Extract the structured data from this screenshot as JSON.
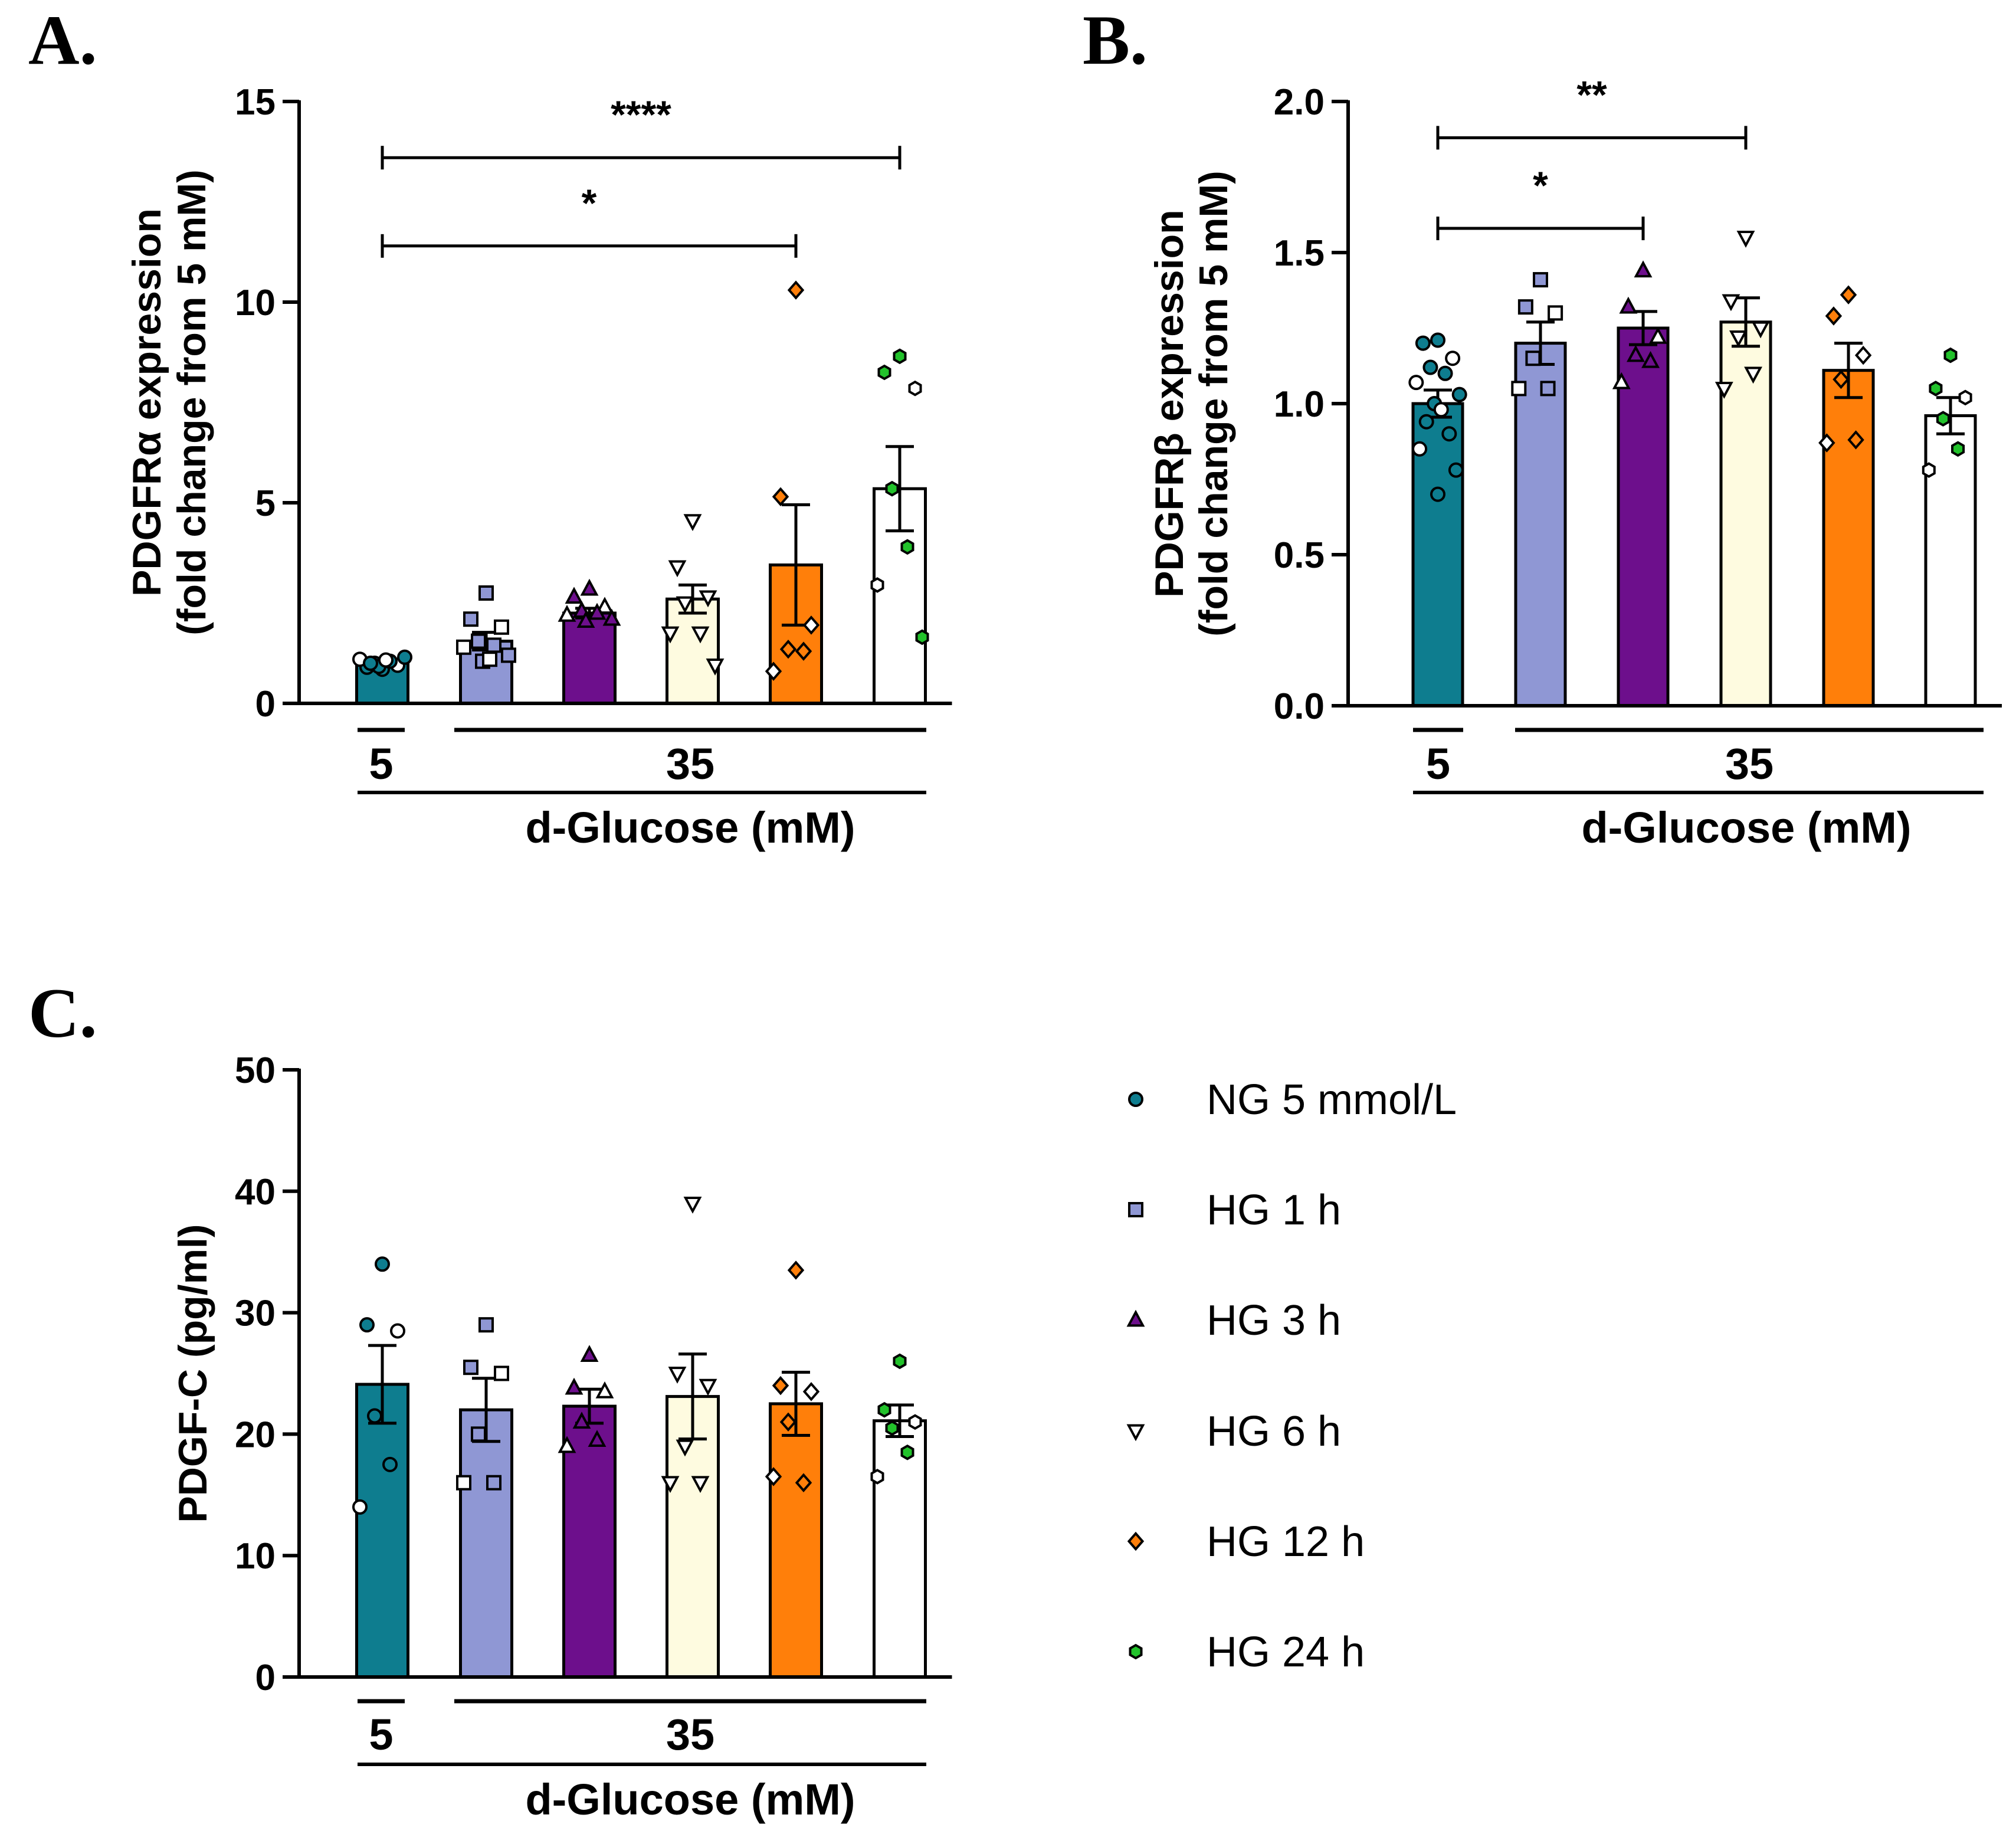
{
  "legend": [
    {
      "label": "NG 5 mmol/L",
      "color": "#0e7d8f",
      "marker": "circle"
    },
    {
      "label": "HG 1 h",
      "color": "#8f97d4",
      "marker": "square"
    },
    {
      "label": "HG 3 h",
      "color": "#6d0f8c",
      "marker": "triangle"
    },
    {
      "label": "HG 6 h",
      "color": "#fefbe0",
      "marker": "triangle-down"
    },
    {
      "label": "HG 12 h",
      "color": "#ff7f0a",
      "marker": "diamond"
    },
    {
      "label": "HG 24 h",
      "color": "#ffffff",
      "marker": "hexagon",
      "marker_color": "#22c22b"
    }
  ],
  "chart_data": [
    {
      "panel": "A.",
      "type": "bar",
      "ylabel_line1": "PDGFRα expression",
      "ylabel_line2": "(fold change from 5 mM)",
      "ylim": [
        0,
        15
      ],
      "yticks": [
        0,
        5,
        10,
        15
      ],
      "ytick_labels": [
        "0",
        "5",
        "10",
        "15"
      ],
      "group_labels": [
        "5",
        "35"
      ],
      "xlabel": "d-Glucose (mM)",
      "categories": [
        "NG 5 mmol/L",
        "HG 1 h",
        "HG 3 h",
        "HG 6 h",
        "HG 12 h",
        "HG 24 h"
      ],
      "values": [
        1.0,
        1.55,
        2.25,
        2.6,
        3.45,
        5.35
      ],
      "sem": [
        0.1,
        0.22,
        0.12,
        0.35,
        1.5,
        1.05
      ],
      "points": [
        [
          0.85,
          0.9,
          0.95,
          1.0,
          1.05,
          1.1,
          1.15,
          0.92,
          1.08,
          1.0
        ],
        [
          2.75,
          2.1,
          1.9,
          1.55,
          1.45,
          1.4,
          1.2,
          1.05,
          1.1
        ],
        [
          2.85,
          2.65,
          2.4,
          2.3,
          2.25,
          2.2,
          2.1,
          2.05
        ],
        [
          4.55,
          3.4,
          2.65,
          2.5,
          1.75,
          1.75,
          0.95
        ],
        [
          10.3,
          5.15,
          1.95,
          1.35,
          1.3,
          0.8
        ],
        [
          8.65,
          8.25,
          7.85,
          5.35,
          3.9,
          2.95,
          1.65
        ]
      ],
      "significance": [
        {
          "from": 0,
          "to": 5,
          "label": "****",
          "y": 13.6
        },
        {
          "from": 0,
          "to": 4,
          "label": "*",
          "y": 11.4
        }
      ]
    },
    {
      "panel": "B.",
      "type": "bar",
      "ylabel_line1": "PDGFRβ expression",
      "ylabel_line2": "(fold change from 5 mM)",
      "ylim": [
        0,
        2.0
      ],
      "yticks": [
        0,
        0.5,
        1.0,
        1.5,
        2.0
      ],
      "ytick_labels": [
        "0.0",
        "0.5",
        "1.0",
        "1.5",
        "2.0"
      ],
      "group_labels": [
        "5",
        "35"
      ],
      "xlabel": "d-Glucose (mM)",
      "categories": [
        "NG 5 mmol/L",
        "HG 1 h",
        "HG 3 h",
        "HG 6 h",
        "HG 12 h",
        "HG 24 h"
      ],
      "values": [
        1.0,
        1.2,
        1.25,
        1.27,
        1.11,
        0.96
      ],
      "sem": [
        0.045,
        0.07,
        0.055,
        0.08,
        0.09,
        0.06
      ],
      "points": [
        [
          1.21,
          1.2,
          1.15,
          1.12,
          1.1,
          1.07,
          1.03,
          1.0,
          0.98,
          0.94,
          0.9,
          0.85,
          0.78,
          0.7
        ],
        [
          1.41,
          1.32,
          1.3,
          1.15,
          1.05,
          1.05
        ],
        [
          1.44,
          1.32,
          1.22,
          1.16,
          1.14,
          1.07
        ],
        [
          1.55,
          1.34,
          1.25,
          1.22,
          1.1,
          1.05
        ],
        [
          1.36,
          1.29,
          1.16,
          1.08,
          0.88,
          0.87
        ],
        [
          1.16,
          1.05,
          1.02,
          0.95,
          0.85,
          0.78
        ]
      ],
      "significance": [
        {
          "from": 0,
          "to": 3,
          "label": "**",
          "y": 1.88
        },
        {
          "from": 0,
          "to": 2,
          "label": "*",
          "y": 1.58
        }
      ]
    },
    {
      "panel": "C.",
      "type": "bar",
      "ylabel_line1": "PDGF-C (pg/ml)",
      "ylabel_line2": "",
      "ylim": [
        0,
        50
      ],
      "yticks": [
        0,
        10,
        20,
        30,
        40,
        50
      ],
      "ytick_labels": [
        "0",
        "10",
        "20",
        "30",
        "40",
        "50"
      ],
      "group_labels": [
        "5",
        "35"
      ],
      "xlabel": "d-Glucose (mM)",
      "categories": [
        "NG 5 mmol/L",
        "HG 1 h",
        "HG 3 h",
        "HG 6 h",
        "HG 12 h",
        "HG 24 h"
      ],
      "values": [
        24.1,
        22.0,
        22.3,
        23.1,
        22.5,
        21.1
      ],
      "sem": [
        3.2,
        2.6,
        1.4,
        3.5,
        2.6,
        1.3
      ],
      "points": [
        [
          34.0,
          29.0,
          28.5,
          21.5,
          17.5,
          14.0
        ],
        [
          29.0,
          25.5,
          25.0,
          20.0,
          16.0,
          16.0
        ],
        [
          26.5,
          23.8,
          23.5,
          21.0,
          19.5,
          19.0
        ],
        [
          39.0,
          25.0,
          24.0,
          19.0,
          16.0,
          16.0
        ],
        [
          33.5,
          24.0,
          23.5,
          21.0,
          16.0,
          16.5
        ],
        [
          26.0,
          22.0,
          21.0,
          20.5,
          18.5,
          16.5
        ]
      ],
      "significance": []
    }
  ]
}
